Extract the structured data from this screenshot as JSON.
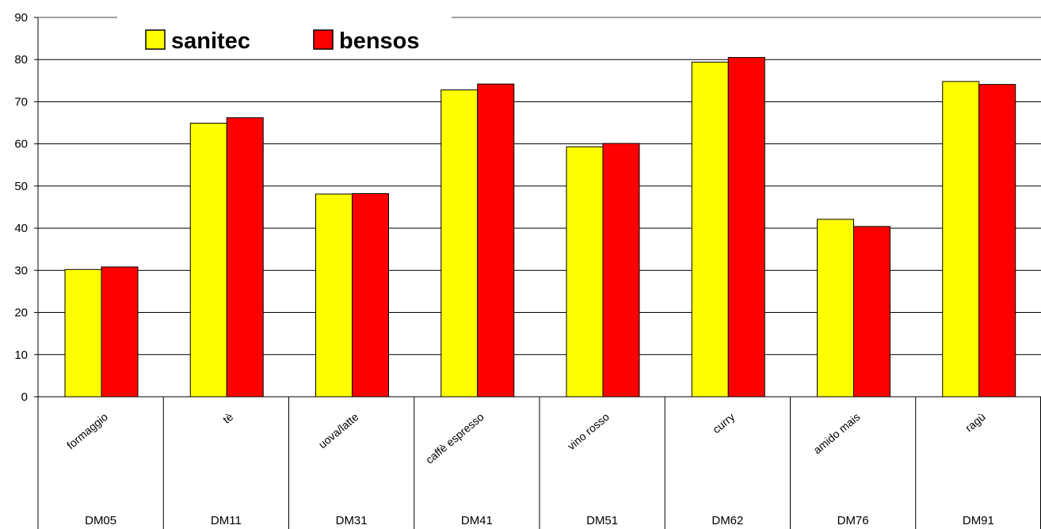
{
  "chart_data": {
    "type": "bar",
    "categories": [
      "formaggio",
      "tè",
      "uova/latte",
      "caffè espresso",
      "vino rosso",
      "curry",
      "amido mais",
      "ragù"
    ],
    "groups": [
      "DM05",
      "DM11",
      "DM31",
      "DM41",
      "DM51",
      "DM62",
      "DM76",
      "DM91"
    ],
    "series": [
      {
        "name": "sanitec",
        "color": "#ffff00",
        "values": [
          30.2,
          64.9,
          48.1,
          72.8,
          59.3,
          79.4,
          42.1,
          74.8
        ]
      },
      {
        "name": "bensos",
        "color": "#ff0000",
        "values": [
          30.8,
          66.2,
          48.2,
          74.2,
          60.1,
          80.5,
          40.4,
          74.1
        ]
      }
    ],
    "ylim": [
      0,
      90
    ],
    "yticks": [
      0,
      10,
      20,
      30,
      40,
      50,
      60,
      70,
      80,
      90
    ],
    "grid": true,
    "legend_position": "top-left"
  }
}
